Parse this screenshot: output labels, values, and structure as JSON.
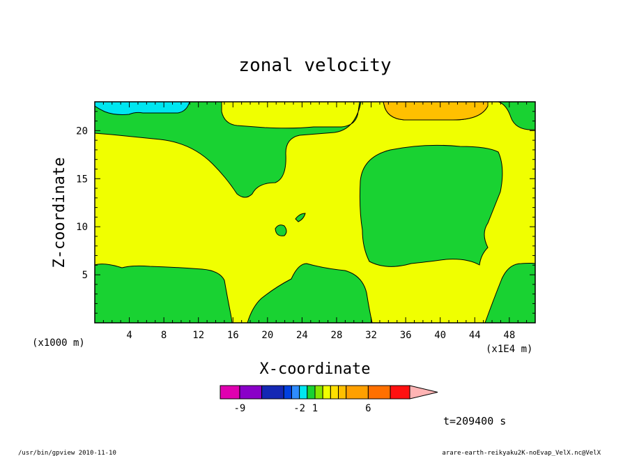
{
  "chart_data": {
    "type": "heatmap",
    "title": "zonal velocity",
    "xlabel": "X-coordinate",
    "ylabel": "Z-coordinate",
    "x_units_left": "(x1000 m)",
    "x_units_right": "(x1E4 m)",
    "xlim": [
      0,
      51
    ],
    "ylim": [
      0,
      23
    ],
    "x_ticks": [
      "4",
      "8",
      "12",
      "16",
      "20",
      "24",
      "28",
      "32",
      "36",
      "40",
      "44",
      "48"
    ],
    "y_ticks": [
      "5",
      "10",
      "15",
      "20"
    ],
    "colorbar": {
      "colors": [
        "#e000b0",
        "#8a00c8",
        "#1428b4",
        "#0040e0",
        "#2e8cff",
        "#00e6f0",
        "#19d232",
        "#87e600",
        "#f0ff00",
        "#ffe000",
        "#ffc000",
        "#ffa000",
        "#ff7000",
        "#ff1010",
        "#ff7878",
        "#ffb4b4"
      ],
      "labels": [
        "-9",
        "-2",
        "1",
        "6"
      ],
      "label_after_index": [
        1,
        5,
        7,
        12
      ]
    },
    "regions": [
      {
        "level": "negative (-2..-1)",
        "color": "#00e6f0",
        "where": "top-left corner"
      },
      {
        "level": "0..1",
        "color": "#19d232",
        "where": "top band, bottom-left, bottom-center, bottom-right, large right-center blob, small blobs near (21,10) and (24,11)"
      },
      {
        "level": "1..2",
        "color": "#f0ff00",
        "where": "background field"
      },
      {
        "level": "3..4",
        "color": "#ffc000",
        "where": "top near x=33-44"
      }
    ],
    "time_label": "t=209400 s"
  },
  "footer": {
    "left": "/usr/bin/gpview  2010-11-10",
    "right": "arare-earth-reikyaku2K-noEvap_VelX.nc@VelX"
  },
  "colors": {
    "frame": "#000000",
    "yellow": "#f0ff00",
    "green": "#19d232",
    "cyan": "#00e6f0",
    "orange": "#ffc000"
  }
}
